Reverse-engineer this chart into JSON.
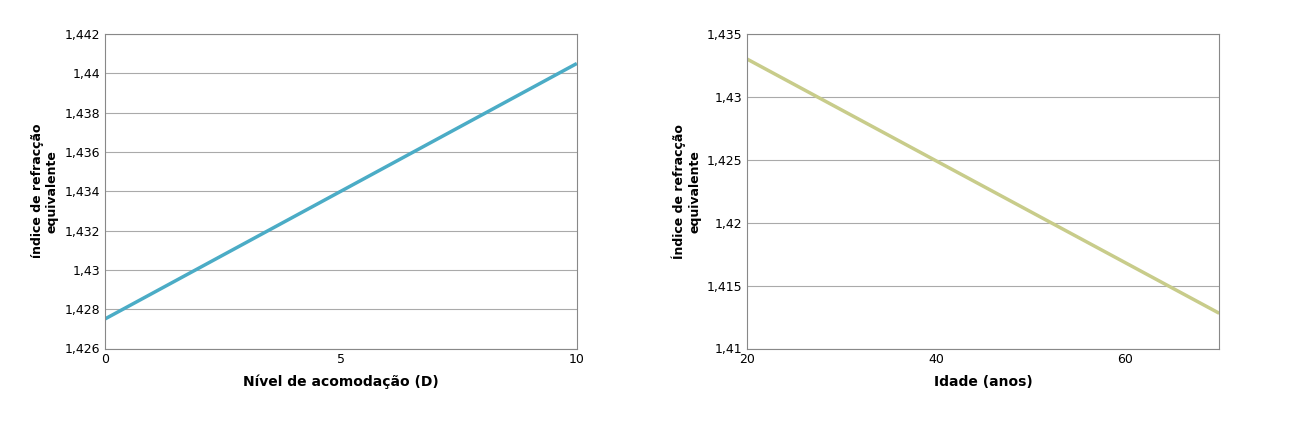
{
  "left": {
    "x": [
      0,
      10
    ],
    "y": [
      1.4275,
      1.4405
    ],
    "color": "#4BACC6",
    "xlabel": "Nível de acomodação (D)",
    "ylabel": "índice de refracção\nequivalente",
    "xlim": [
      0,
      10
    ],
    "ylim": [
      1.426,
      1.442
    ],
    "yticks": [
      1.426,
      1.428,
      1.43,
      1.432,
      1.434,
      1.436,
      1.438,
      1.44,
      1.442
    ],
    "xticks": [
      0,
      5,
      10
    ],
    "linewidth": 2.5
  },
  "right": {
    "x": [
      20,
      70
    ],
    "y": [
      1.433,
      1.4128
    ],
    "color": "#C8CC8A",
    "xlabel": "Idade (anos)",
    "ylabel": "Índice de refracção\nequivalente",
    "xlim": [
      20,
      70
    ],
    "ylim": [
      1.41,
      1.435
    ],
    "yticks": [
      1.41,
      1.415,
      1.42,
      1.425,
      1.43,
      1.435
    ],
    "xticks": [
      20,
      40,
      60
    ],
    "linewidth": 2.5
  },
  "background_color": "#ffffff",
  "grid_color": "#AAAAAA",
  "tick_label_fontsize": 9,
  "axis_label_fontsize": 10,
  "ylabel_fontsize": 9
}
